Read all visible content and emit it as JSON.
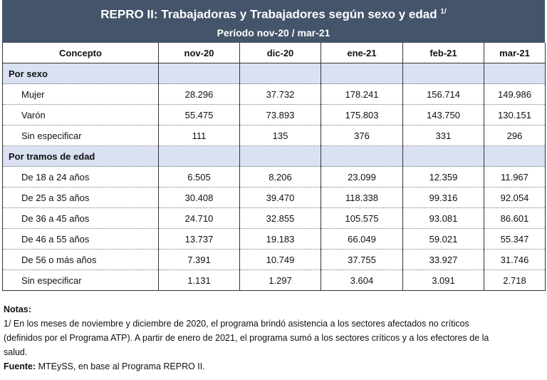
{
  "title": "REPRO II: Trabajadoras y Trabajadores según sexo y edad",
  "title_sup": "1/",
  "subtitle": "Período nov-20 / mar-21",
  "headers": [
    "Concepto",
    "nov-20",
    "dic-20",
    "ene-21",
    "feb-21",
    "mar-21"
  ],
  "sections": [
    {
      "label": "Por sexo",
      "rows": [
        {
          "label": "Mujer",
          "values": [
            "28.296",
            "37.732",
            "178.241",
            "156.714",
            "149.986"
          ]
        },
        {
          "label": "Varón",
          "values": [
            "55.475",
            "73.893",
            "175.803",
            "143.750",
            "130.151"
          ]
        },
        {
          "label": "Sin especificar",
          "values": [
            "111",
            "135",
            "376",
            "331",
            "296"
          ]
        }
      ]
    },
    {
      "label": "Por tramos de edad",
      "rows": [
        {
          "label": "De 18 a 24 años",
          "values": [
            "6.505",
            "8.206",
            "23.099",
            "12.359",
            "11.967"
          ]
        },
        {
          "label": "De 25 a 35 años",
          "values": [
            "30.408",
            "39.470",
            "118.338",
            "99.316",
            "92.054"
          ]
        },
        {
          "label": "De 36 a 45 años",
          "values": [
            "24.710",
            "32.855",
            "105.575",
            "93.081",
            "86.601"
          ]
        },
        {
          "label": "De 46 a 55 años",
          "values": [
            "13.737",
            "19.183",
            "66.049",
            "59.021",
            "55.347"
          ]
        },
        {
          "label": "De 56 o más años",
          "values": [
            "7.391",
            "10.749",
            "37.755",
            "33.927",
            "31.746"
          ]
        },
        {
          "label": "Sin especificar",
          "values": [
            "1.131",
            "1.297",
            "3.604",
            "3.091",
            "2.718"
          ]
        }
      ]
    }
  ],
  "notes": {
    "heading": "Notas:",
    "note1": "1/ En los meses de noviembre y diciembre de 2020, el programa brindó asistencia a los sectores afectados no críticos (definidos por el Programa ATP). A partir de enero de 2021, el programa sumó a los sectores críticos y a los efectores de la salud.",
    "source_label": "Fuente:",
    "source_text": " MTEySS, en base al Programa REPRO II."
  }
}
